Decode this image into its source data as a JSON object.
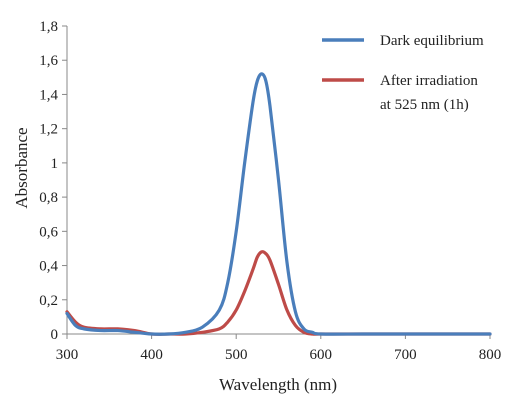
{
  "chart_data": {
    "type": "line",
    "xlabel": "Wavelength (nm)",
    "ylabel": "Absorbance",
    "xlim": [
      300,
      800
    ],
    "ylim": [
      0,
      1.8
    ],
    "x_ticks": [
      "300",
      "400",
      "500",
      "600",
      "700",
      "800"
    ],
    "y_ticks": [
      "0",
      "0,2",
      "0,4",
      "0,6",
      "0,8",
      "1",
      "1,2",
      "1,4",
      "1,6",
      "1,8"
    ],
    "grid": false,
    "legend_position": "top-right",
    "series": [
      {
        "name": "Dark equilibrium",
        "color": "#4a7ebb",
        "x": [
          300,
          310,
          320,
          340,
          360,
          380,
          400,
          420,
          440,
          460,
          480,
          490,
          500,
          510,
          520,
          525,
          530,
          535,
          540,
          550,
          560,
          570,
          580,
          590,
          600,
          650,
          700,
          750,
          800
        ],
        "y": [
          0.12,
          0.05,
          0.03,
          0.02,
          0.02,
          0.01,
          0.0,
          0.0,
          0.01,
          0.04,
          0.14,
          0.3,
          0.6,
          1.0,
          1.36,
          1.48,
          1.52,
          1.48,
          1.33,
          0.9,
          0.42,
          0.13,
          0.03,
          0.01,
          0.0,
          0.0,
          0.0,
          0.0,
          0.0
        ]
      },
      {
        "name": "After irradiation\nat 525 nm (1h)",
        "color": "#be4b48",
        "x": [
          300,
          310,
          320,
          340,
          360,
          380,
          400,
          420,
          440,
          460,
          480,
          490,
          500,
          510,
          520,
          525,
          530,
          535,
          540,
          550,
          560,
          570,
          580,
          590,
          600,
          650,
          700,
          750,
          800
        ],
        "y": [
          0.13,
          0.07,
          0.04,
          0.03,
          0.03,
          0.02,
          0.0,
          0.0,
          0.0,
          0.01,
          0.03,
          0.07,
          0.14,
          0.25,
          0.38,
          0.45,
          0.48,
          0.47,
          0.43,
          0.29,
          0.14,
          0.05,
          0.01,
          0.0,
          0.0,
          0.0,
          0.0,
          0.0,
          0.0
        ]
      }
    ]
  },
  "legend": [
    {
      "lines": [
        "Dark equilibrium"
      ]
    },
    {
      "lines": [
        "After irradiation",
        "at 525 nm (1h)"
      ]
    }
  ]
}
